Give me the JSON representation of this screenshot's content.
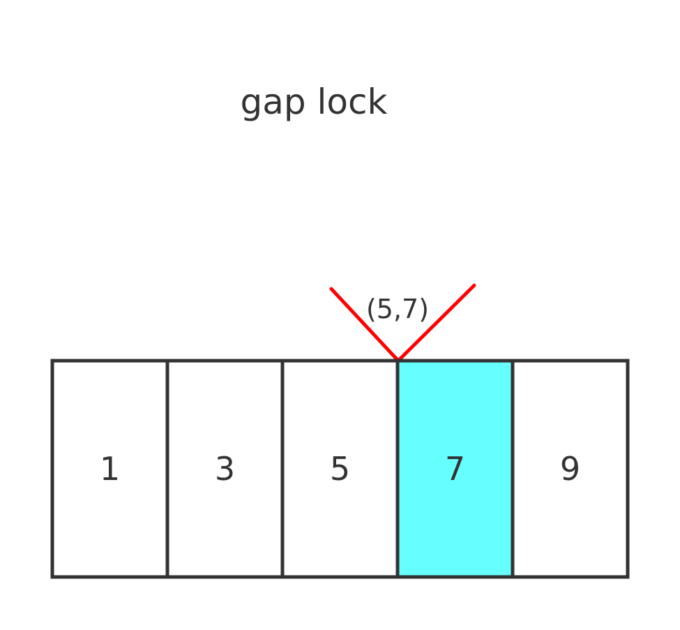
{
  "title": "gap lock",
  "gap_label": "(5,7)",
  "gap_marker_color": "#ff0000",
  "cells": [
    {
      "value": "1",
      "highlighted": false
    },
    {
      "value": "3",
      "highlighted": false
    },
    {
      "value": "5",
      "highlighted": false
    },
    {
      "value": "7",
      "highlighted": true
    },
    {
      "value": "9",
      "highlighted": false
    }
  ],
  "colors": {
    "border": "#333333",
    "highlight": "#66ffff",
    "normal": "#ffffff"
  }
}
